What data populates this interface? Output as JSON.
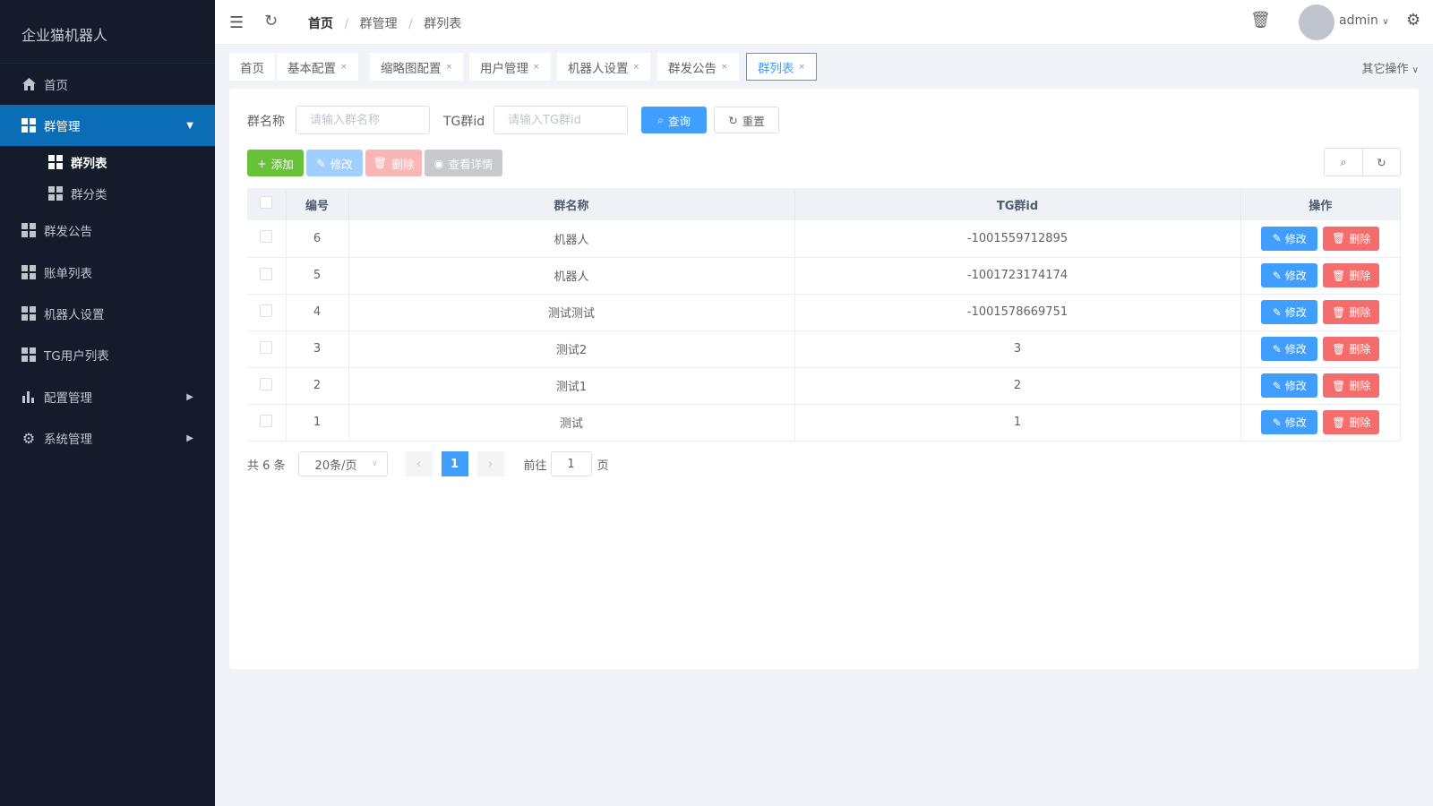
{
  "app_title": "企业猫机器人",
  "sidebar": {
    "items": [
      {
        "label": "首页",
        "icon": "home-icon"
      },
      {
        "label": "群管理",
        "icon": "grid-icon",
        "expanded": true,
        "children": [
          {
            "label": "群列表",
            "active": true
          },
          {
            "label": "群分类"
          }
        ]
      },
      {
        "label": "群发公告",
        "icon": "grid-icon"
      },
      {
        "label": "账单列表",
        "icon": "grid-icon"
      },
      {
        "label": "机器人设置",
        "icon": "grid-icon"
      },
      {
        "label": "TG用户列表",
        "icon": "grid-icon"
      },
      {
        "label": "配置管理",
        "icon": "bar-chart-icon"
      },
      {
        "label": "系统管理",
        "icon": "gear-icon"
      }
    ]
  },
  "header": {
    "breadcrumb": [
      "首页",
      "群管理",
      "群列表"
    ],
    "user": "admin"
  },
  "tabs": [
    {
      "label": "首页"
    },
    {
      "label": "基本配置"
    },
    {
      "label": "缩略图配置"
    },
    {
      "label": "用户管理"
    },
    {
      "label": "机器人设置"
    },
    {
      "label": "群发公告"
    },
    {
      "label": "群列表",
      "active": true
    }
  ],
  "tabs_more": "其它操作",
  "search": {
    "name_label": "群名称",
    "name_placeholder": "请输入群名称",
    "tgid_label": "TG群id",
    "tgid_placeholder": "请输入TG群id",
    "query": "查询",
    "reset": "重置"
  },
  "toolbar": {
    "add": "添加",
    "edit": "修改",
    "delete": "删除",
    "detail": "查看详情"
  },
  "table": {
    "columns": [
      "编号",
      "群名称",
      "TG群id",
      "操作"
    ],
    "rows": [
      {
        "id": "6",
        "name": "机器人",
        "tgid": "-1001559712895"
      },
      {
        "id": "5",
        "name": "机器人",
        "tgid": "-1001723174174"
      },
      {
        "id": "4",
        "name": "测试测试",
        "tgid": "-1001578669751"
      },
      {
        "id": "3",
        "name": "测试2",
        "tgid": "3"
      },
      {
        "id": "2",
        "name": "测试1",
        "tgid": "2"
      },
      {
        "id": "1",
        "name": "测试",
        "tgid": "1"
      }
    ],
    "row_edit": "修改",
    "row_delete": "删除"
  },
  "pagination": {
    "total": "共 6 条",
    "page_size": "20条/页",
    "current": "1",
    "goto_label": "前往",
    "goto_value": "1",
    "page_suffix": "页"
  },
  "colors": {
    "primary": "#409eff",
    "success": "#67c23a",
    "danger": "#f56c6c",
    "sidebar_bg": "#141c2b",
    "sidebar_active": "#0b6db5"
  }
}
